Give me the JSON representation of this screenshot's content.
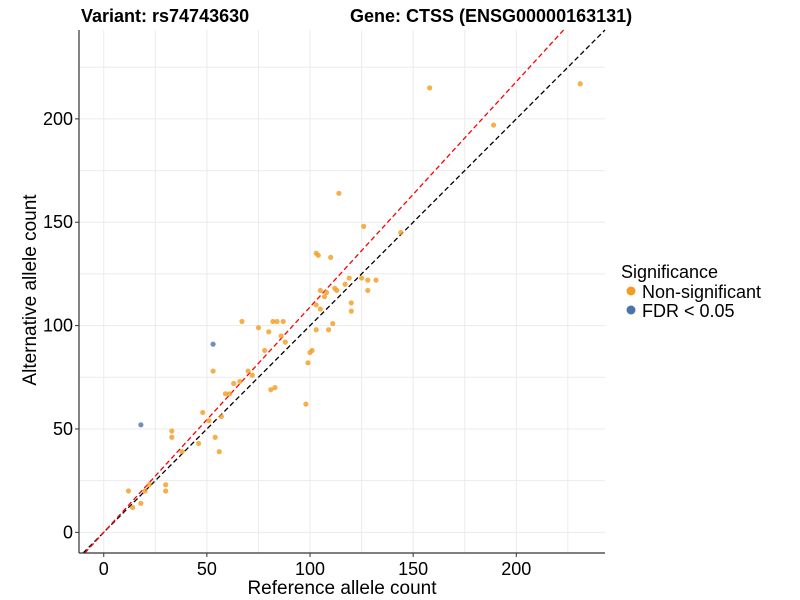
{
  "chart_data": {
    "type": "scatter",
    "title_left": "Variant: rs74743630",
    "title_right": "Gene: CTSS (ENSG00000163131)",
    "xlabel": "Reference allele count",
    "ylabel": "Alternative allele count",
    "xlim": [
      -12,
      243
    ],
    "ylim": [
      -10,
      243
    ],
    "x_ticks": [
      0,
      50,
      100,
      150,
      200
    ],
    "y_ticks": [
      0,
      50,
      100,
      150,
      200
    ],
    "grid": true,
    "legend": {
      "title": "Significance",
      "position": "right",
      "entries": [
        {
          "label": "Non-significant",
          "color": "#F39C1F"
        },
        {
          "label": "FDR < 0.05",
          "color": "#4A74AA"
        }
      ]
    },
    "reference_lines": [
      {
        "slope": 1.0,
        "intercept": 0,
        "color": "#000000",
        "style": "dashed"
      },
      {
        "slope": 1.09,
        "intercept": 0,
        "color": "#FF0000",
        "style": "dashed"
      }
    ],
    "series": [
      {
        "name": "Non-significant",
        "color": "#F39C1F",
        "points": [
          [
            12,
            20
          ],
          [
            14,
            12
          ],
          [
            18,
            14
          ],
          [
            20,
            20
          ],
          [
            22,
            23
          ],
          [
            30,
            23
          ],
          [
            30,
            20
          ],
          [
            33,
            49
          ],
          [
            33,
            46
          ],
          [
            38,
            39
          ],
          [
            46,
            43
          ],
          [
            48,
            58
          ],
          [
            51,
            54
          ],
          [
            53,
            78
          ],
          [
            54,
            46
          ],
          [
            56,
            39
          ],
          [
            57,
            56
          ],
          [
            59,
            67
          ],
          [
            61,
            67
          ],
          [
            63,
            72
          ],
          [
            66,
            73
          ],
          [
            67,
            102
          ],
          [
            70,
            78
          ],
          [
            72,
            76
          ],
          [
            75,
            99
          ],
          [
            78,
            88
          ],
          [
            80,
            97
          ],
          [
            81,
            69
          ],
          [
            82,
            102
          ],
          [
            83,
            70
          ],
          [
            84,
            102
          ],
          [
            86,
            95
          ],
          [
            87,
            102
          ],
          [
            88,
            92
          ],
          [
            98,
            62
          ],
          [
            99,
            82
          ],
          [
            100,
            87
          ],
          [
            101,
            88
          ],
          [
            103,
            98
          ],
          [
            103,
            110
          ],
          [
            103,
            135
          ],
          [
            104,
            134
          ],
          [
            105,
            108
          ],
          [
            105,
            117
          ],
          [
            107,
            114
          ],
          [
            108,
            116
          ],
          [
            109,
            98
          ],
          [
            110,
            133
          ],
          [
            111,
            101
          ],
          [
            112,
            118
          ],
          [
            113,
            117
          ],
          [
            114,
            164
          ],
          [
            117,
            120
          ],
          [
            119,
            123
          ],
          [
            120,
            111
          ],
          [
            120,
            107
          ],
          [
            125,
            123
          ],
          [
            126,
            148
          ],
          [
            128,
            122
          ],
          [
            128,
            117
          ],
          [
            132,
            122
          ],
          [
            144,
            145
          ],
          [
            158,
            215
          ],
          [
            189,
            197
          ],
          [
            231,
            217
          ]
        ]
      },
      {
        "name": "FDR < 0.05",
        "color": "#4A74AA",
        "points": [
          [
            18,
            52
          ],
          [
            53,
            91
          ]
        ]
      }
    ]
  }
}
